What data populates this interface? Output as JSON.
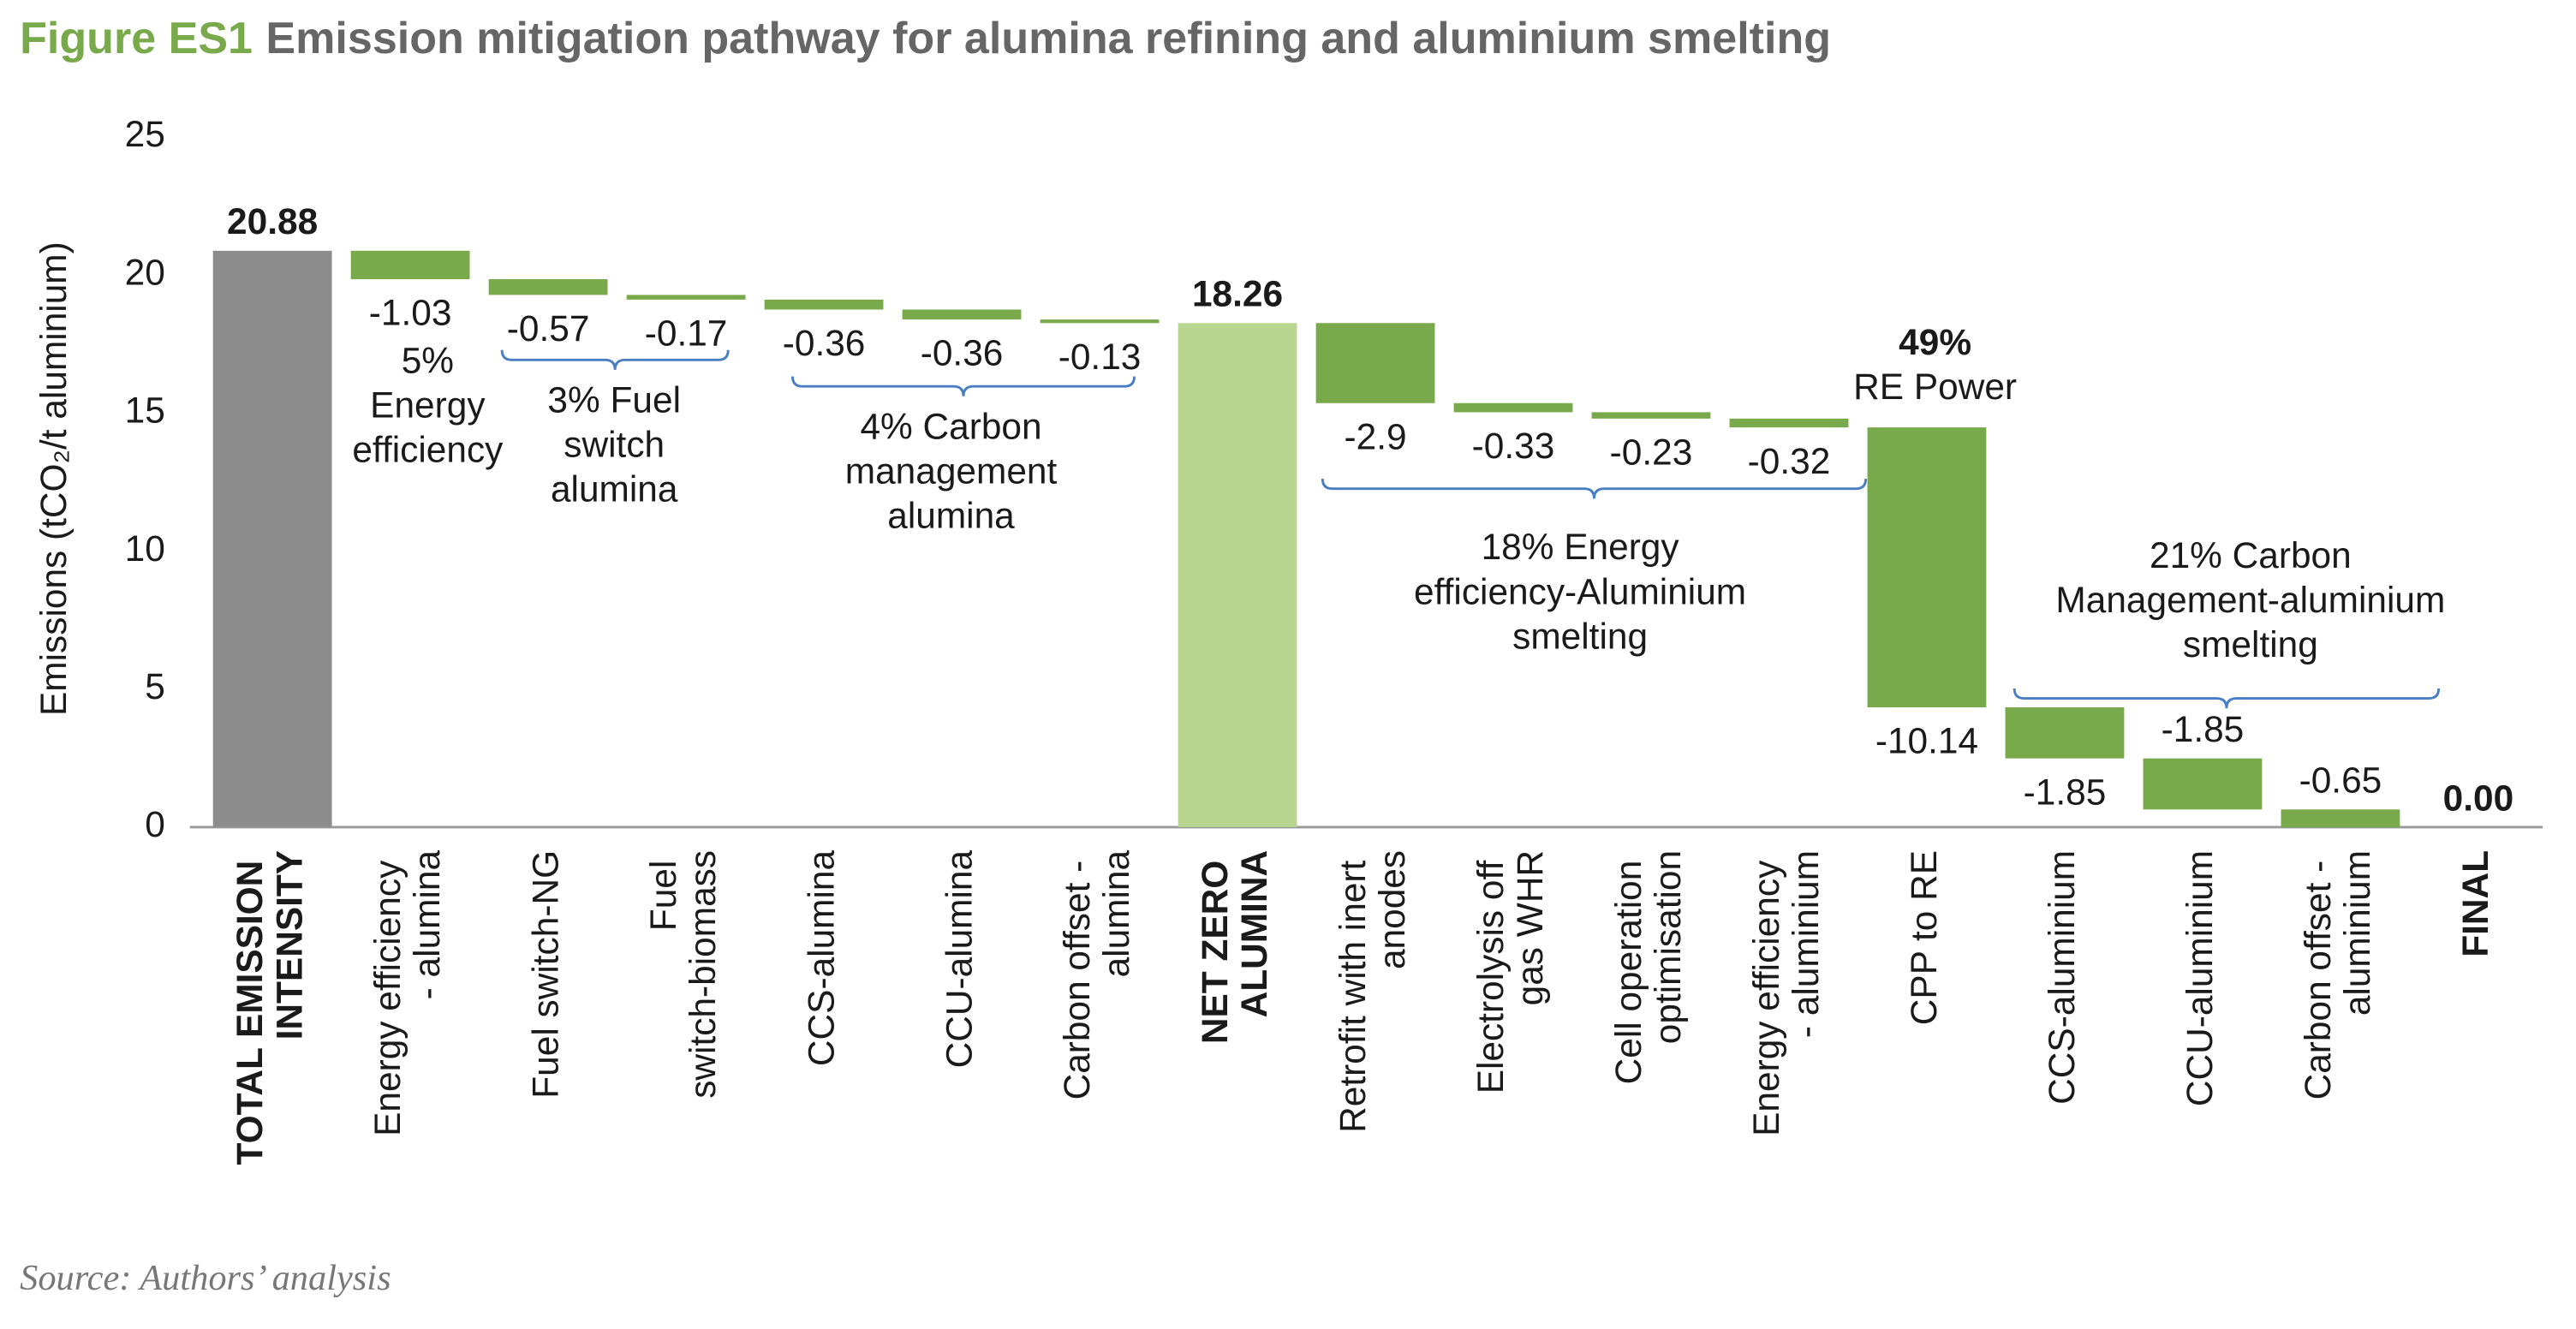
{
  "chart_data": {
    "type": "waterfall",
    "figure_label": "Figure ES1",
    "title": "Emission mitigation pathway for alumina refining and aluminium smelting",
    "y_label": "Emissions (tCO₂/t aluminium)",
    "categories": [
      "TOTAL EMISSION INTENSITY",
      "Energy efficiency - alumina",
      "Fuel switch-NG",
      "Fuel switch-biomass",
      "CCS-alumina",
      "CCU-alumina",
      "Carbon offset - alumina",
      "NET ZERO ALUMINA",
      "Retrofit with inert anodes",
      "Electrolysis off gas WHR",
      "Cell operation optimisation",
      "Energy efficiency - aluminium",
      "CPP to RE",
      "CCS-aluminium",
      "CCU-aluminium",
      "Carbon offset - aluminium",
      "FINAL"
    ],
    "values": [
      20.88,
      -1.03,
      -0.57,
      -0.17,
      -0.36,
      -0.36,
      -0.13,
      18.26,
      -2.9,
      -0.33,
      -0.23,
      -0.32,
      -10.14,
      -1.85,
      -1.85,
      -0.65,
      0
    ],
    "value_labels": [
      "20.88",
      "-1.03",
      "-0.57",
      "-0.17",
      "-0.36",
      "-0.36",
      "-0.13",
      "18.26",
      "-2.9",
      "-0.33",
      "-0.23",
      "-0.32",
      "-10.14",
      "-1.85",
      "-1.85",
      "-0.65",
      "0.00"
    ],
    "colors": [
      "#8c8c8c",
      "#78a94a",
      "#78a94a",
      "#78a94a",
      "#78a94a",
      "#78a94a",
      "#78a94a",
      "#b8d68f",
      "#78a94a",
      "#78a94a",
      "#78a94a",
      "#78a94a",
      "#78a94a",
      "#78a94a",
      "#78a94a",
      "#78a94a",
      "#78a94a"
    ],
    "ylim": [
      0,
      25
    ],
    "yticks": [
      0,
      5,
      10,
      15,
      20,
      25
    ],
    "annotations": [
      {
        "lines": [
          "5%",
          "Energy",
          "efficiency"
        ]
      },
      {
        "lines": [
          "3% Fuel",
          "switch",
          "alumina"
        ]
      },
      {
        "lines": [
          "4% Carbon",
          "management",
          "alumina"
        ]
      },
      {
        "lines": [
          "49%",
          "RE Power"
        ]
      },
      {
        "lines": [
          "18% Energy",
          "efficiency-Aluminium",
          "smelting"
        ]
      },
      {
        "lines": [
          "21% Carbon",
          "Management-aluminium",
          "smelting"
        ]
      }
    ]
  },
  "source": "Source: Authors’ analysis"
}
